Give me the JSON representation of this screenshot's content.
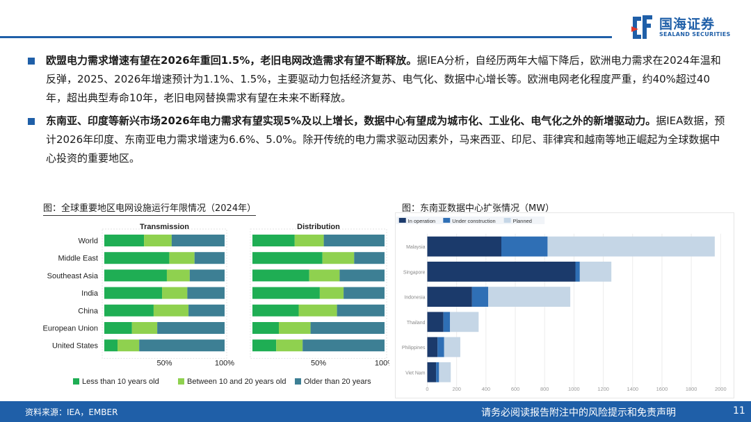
{
  "header": {
    "logo_cn": "国海证券",
    "logo_en": "SEALAND SECURITIES",
    "brand_color": "#1f5fa8"
  },
  "bullets": [
    {
      "bold": "欧盟电力需求增速有望在2026年重回1.5%，老旧电网改造需求有望不断释放。",
      "text": "据IEA分析，自经历两年大幅下降后，欧洲电力需求在2024年温和反弹，2025、2026年增速预计为1.1%、1.5%，主要驱动力包括经济复苏、电气化、数据中心增长等。欧洲电网老化程度严重，约40%超过40年，超出典型寿命10年，老旧电网替换需求有望在未来不断释放。"
    },
    {
      "bold": "东南亚、印度等新兴市场2026年电力需求有望实现5%及以上增长，数据中心有望成为城市化、工业化、电气化之外的新增驱动力。",
      "text": "据IEA数据，预计2026年印度、东南亚电力需求增速为6.6%、5.0%。除开传统的电力需求驱动因素外，马来西亚、印尼、菲律宾和越南等地正崛起为全球数据中心投资的重要地区。"
    }
  ],
  "figures": {
    "left_title": "图：全球重要地区电网设施运行年限情况（2024年）",
    "right_title": "图：东南亚数据中心扩张情况（MW）"
  },
  "chart_data": [
    {
      "type": "bar",
      "orientation": "horizontal-stacked-100",
      "categories": [
        "World",
        "Middle East",
        "Southeast Asia",
        "India",
        "China",
        "European Union",
        "United States"
      ],
      "panels": [
        {
          "title": "Transmission",
          "series": [
            {
              "name": "Less than 10 years old",
              "values": [
                33,
                54,
                52,
                48,
                41,
                23,
                11
              ]
            },
            {
              "name": "Between 10 and 20 years old",
              "values": [
                23,
                21,
                19,
                21,
                29,
                21,
                18
              ]
            },
            {
              "name": "Older than 20 years",
              "values": [
                44,
                25,
                29,
                31,
                30,
                56,
                71
              ]
            }
          ],
          "tick_labels": [
            "50%",
            "100%"
          ]
        },
        {
          "title": "Distribution",
          "series": [
            {
              "name": "Less than 10 years old",
              "values": [
                32,
                53,
                43,
                51,
                35,
                20,
                18
              ]
            },
            {
              "name": "Between 10 and 20 years old",
              "values": [
                22,
                24,
                23,
                18,
                29,
                24,
                20
              ]
            },
            {
              "name": "Older than 20 years",
              "values": [
                46,
                23,
                34,
                31,
                36,
                56,
                62
              ]
            }
          ],
          "tick_labels": [
            "50%",
            "100%"
          ]
        }
      ],
      "colors": [
        "#1fae54",
        "#8fd14f",
        "#3d7f94"
      ],
      "legend": [
        "Less than 10 years old",
        "Between 10 and 20 years old",
        "Older than 20 years"
      ],
      "xlim": [
        0,
        100
      ]
    },
    {
      "type": "bar",
      "orientation": "horizontal-stacked",
      "categories": [
        "Malaysia",
        "Singapore",
        "Indonesia",
        "Thailand",
        "Philippines",
        "Viet Nam"
      ],
      "series": [
        {
          "name": "In operation",
          "values": [
            505,
            1010,
            305,
            110,
            70,
            60
          ]
        },
        {
          "name": "Under construction",
          "values": [
            315,
            30,
            110,
            45,
            45,
            20
          ]
        },
        {
          "name": "Planned",
          "values": [
            1140,
            215,
            560,
            195,
            110,
            80
          ]
        }
      ],
      "colors": [
        "#1b3a6b",
        "#2f6fb5",
        "#c5d6e6"
      ],
      "x_ticks": [
        "0",
        "200",
        "400",
        "600",
        "800",
        "1000",
        "1200",
        "1400",
        "1600",
        "1800",
        "2000"
      ],
      "xlim": [
        0,
        2000
      ],
      "legend": [
        "In operation",
        "Under construction",
        "Planned"
      ],
      "unit": "MW"
    }
  ],
  "footer": {
    "source": "资料来源：IEA，EMBER",
    "note": "请务必阅读报告附注中的风险提示和免责声明",
    "page": "11"
  }
}
